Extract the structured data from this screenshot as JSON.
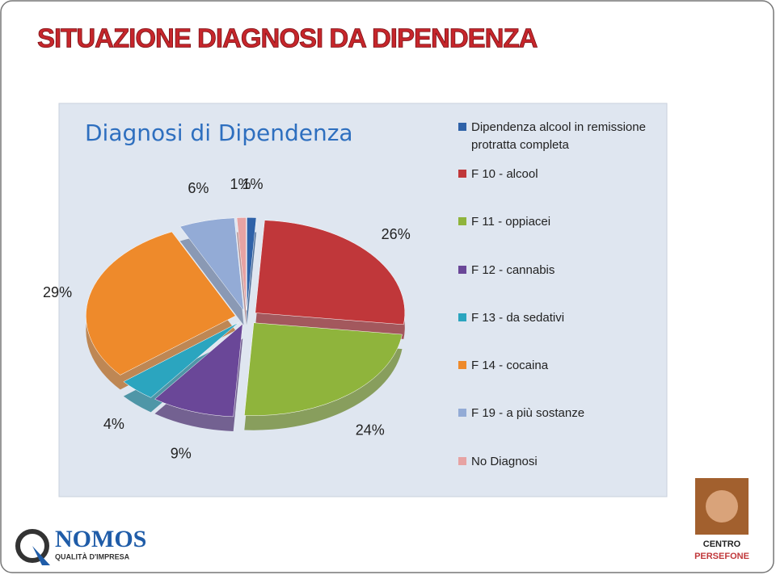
{
  "slide_title": "SITUAZIONE DIAGNOSI DA DIPENDENZA",
  "chart_data": {
    "type": "pie",
    "title": "Diagnosi di Dipendenza",
    "categories": [
      "Dipendenza alcool in remissione protratta completa",
      "F 10 - alcool",
      "F 11 - oppiacei",
      "F 12 - cannabis",
      "F 13 - da sedativi",
      "F 14 - cocaina",
      "F 19 - a più sostanze",
      "No Diagnosi"
    ],
    "values": [
      1,
      26,
      24,
      9,
      4,
      29,
      6,
      1
    ],
    "value_labels": [
      "1%",
      "26%",
      "24%",
      "9%",
      "4%",
      "29%",
      "6%",
      "1%"
    ],
    "colors": [
      "#2f62a8",
      "#c0373a",
      "#8fb43c",
      "#6a4798",
      "#2ba5bf",
      "#ee8a2b",
      "#93abd6",
      "#e7a3a3"
    ],
    "legend": "right"
  },
  "logos": {
    "left": "NOMOS",
    "left_sub": "QUALITÀ D'IMPRESA",
    "right_top": "CENTRO",
    "right_bottom": "PERSEFONE"
  }
}
